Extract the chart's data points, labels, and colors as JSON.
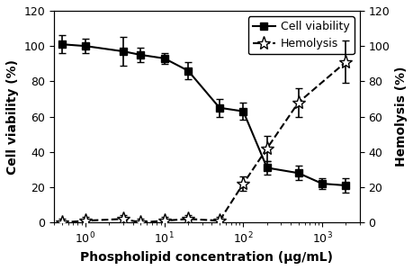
{
  "cell_viability_x": [
    0.5,
    1,
    3,
    5,
    10,
    20,
    50,
    100,
    200,
    500,
    1000,
    2000
  ],
  "cell_viability_y": [
    101,
    100,
    97,
    95,
    93,
    86,
    65,
    63,
    31,
    28,
    22,
    21
  ],
  "cell_viability_yerr": [
    5,
    4,
    8,
    4,
    3,
    5,
    5,
    5,
    4,
    4,
    3,
    4
  ],
  "hemolysis_x": [
    0.5,
    1,
    3,
    5,
    10,
    20,
    50,
    100,
    200,
    500,
    2000
  ],
  "hemolysis_y": [
    0,
    1,
    2,
    0,
    1,
    2,
    1,
    22,
    42,
    68,
    91
  ],
  "hemolysis_yerr": [
    2,
    2,
    2,
    2,
    2,
    2,
    2,
    4,
    7,
    8,
    12
  ],
  "xlim": [
    0.4,
    3000
  ],
  "ylim_left": [
    0,
    120
  ],
  "ylim_right": [
    0,
    120
  ],
  "yticks_left": [
    0,
    20,
    40,
    60,
    80,
    100,
    120
  ],
  "yticks_right": [
    0,
    20,
    40,
    60,
    80,
    100,
    120
  ],
  "xticks": [
    1,
    10,
    100,
    1000
  ],
  "xlabel": "Phospholipid concentration (μg/mL)",
  "ylabel_left": "Cell viability (%)",
  "ylabel_right": "Hemolysis (%)",
  "legend_cell": "Cell viability",
  "legend_hemo": "Hemolysis"
}
